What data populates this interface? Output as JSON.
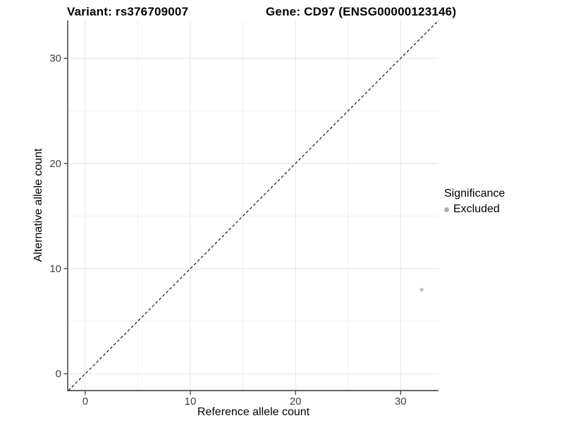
{
  "title": {
    "variant": "Variant: rs376709007",
    "gene": "Gene: CD97 (ENSG00000123146)"
  },
  "chart_data": {
    "type": "scatter",
    "titles": [
      "Variant: rs376709007",
      "Gene: CD97 (ENSG00000123146)"
    ],
    "xlabel": "Reference allele count",
    "ylabel": "Alternative allele count",
    "xlim": [
      -1.6,
      33.6
    ],
    "ylim": [
      -1.6,
      33.6
    ],
    "x_ticks": [
      0,
      10,
      20,
      30
    ],
    "y_ticks": [
      0,
      10,
      20,
      30
    ],
    "grid": {
      "show": true,
      "step": 5,
      "major_every": 10
    },
    "reference_line": {
      "equation": "y = x",
      "style": "dashed",
      "color": "#000000"
    },
    "series": [
      {
        "name": "Excluded",
        "marker_color": "#bfbfbf",
        "marker_radius_px": 2.6,
        "points": [
          {
            "x": 32,
            "y": 8
          }
        ]
      }
    ],
    "legend": {
      "title": "Significance",
      "position": "right",
      "entries": [
        {
          "label": "Excluded",
          "marker_color": "#b0b0b0"
        }
      ]
    }
  },
  "colors": {
    "background": "#ffffff",
    "axis_line": "#333333",
    "tick_label": "#404040",
    "grid_major": "#e4e4e4",
    "grid_minor": "#f0f0f0"
  }
}
